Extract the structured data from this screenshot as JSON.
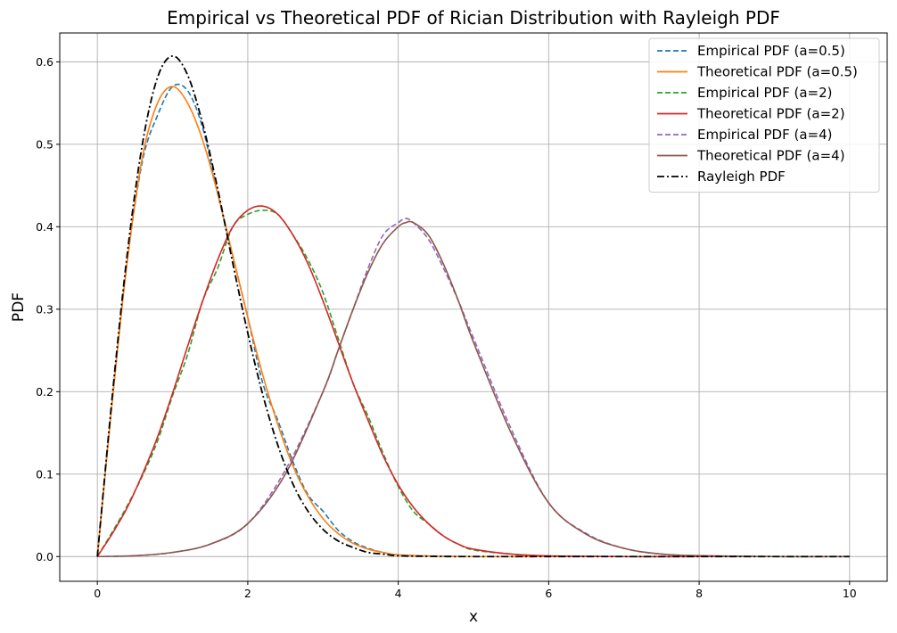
{
  "chart_data": {
    "type": "line",
    "title": "Empirical vs Theoretical PDF of Rician Distribution with Rayleigh PDF",
    "xlabel": "x",
    "ylabel": "PDF",
    "xlim": [
      -0.5,
      10.5
    ],
    "ylim": [
      -0.03,
      0.635
    ],
    "xticks": [
      0,
      2,
      4,
      6,
      8,
      10
    ],
    "yticks": [
      0.0,
      0.1,
      0.2,
      0.3,
      0.4,
      0.5,
      0.6
    ],
    "xtick_labels": [
      "0",
      "2",
      "4",
      "6",
      "8",
      "10"
    ],
    "ytick_labels": [
      "0.0",
      "0.1",
      "0.2",
      "0.3",
      "0.4",
      "0.5",
      "0.6"
    ],
    "grid": true,
    "legend_position": "top-right",
    "series": [
      {
        "name": "Empirical PDF (a=0.5)",
        "style": "dashed",
        "color": "#1f77b4",
        "x": [
          0,
          0.2,
          0.4,
          0.6,
          0.8,
          1.0,
          1.2,
          1.4,
          1.6,
          1.8,
          2.0,
          2.2,
          2.4,
          2.6,
          2.8,
          3.0,
          3.2,
          3.4,
          3.6,
          3.8,
          4.0,
          4.5,
          5.0,
          6.0,
          8.0,
          10.0
        ],
        "y": [
          0,
          0.19,
          0.36,
          0.48,
          0.535,
          0.57,
          0.565,
          0.52,
          0.44,
          0.365,
          0.29,
          0.21,
          0.165,
          0.115,
          0.075,
          0.055,
          0.032,
          0.018,
          0.01,
          0.005,
          0.002,
          0.0005,
          0,
          0,
          0,
          0
        ]
      },
      {
        "name": "Theoretical PDF (a=0.5)",
        "style": "solid",
        "color": "#ff7f0e",
        "x": [
          0,
          0.2,
          0.4,
          0.6,
          0.8,
          1.0,
          1.2,
          1.4,
          1.6,
          1.8,
          2.0,
          2.2,
          2.4,
          2.6,
          2.8,
          3.0,
          3.2,
          3.4,
          3.6,
          3.8,
          4.0,
          4.5,
          5.0,
          6.0,
          8.0,
          10.0
        ],
        "y": [
          0,
          0.19,
          0.36,
          0.485,
          0.55,
          0.57,
          0.55,
          0.505,
          0.44,
          0.365,
          0.29,
          0.22,
          0.16,
          0.11,
          0.073,
          0.046,
          0.028,
          0.016,
          0.009,
          0.005,
          0.002,
          0.0004,
          0,
          0,
          0,
          0
        ]
      },
      {
        "name": "Empirical PDF (a=2)",
        "style": "dashed",
        "color": "#2ca02c",
        "x": [
          0,
          0.2,
          0.4,
          0.6,
          0.8,
          1.0,
          1.2,
          1.4,
          1.6,
          1.8,
          2.0,
          2.2,
          2.4,
          2.6,
          2.8,
          3.0,
          3.2,
          3.4,
          3.6,
          3.8,
          4.0,
          4.2,
          4.4,
          4.6,
          4.8,
          5.0,
          5.5,
          6.0,
          7.0,
          8.0,
          10.0
        ],
        "y": [
          0,
          0.03,
          0.062,
          0.098,
          0.14,
          0.195,
          0.245,
          0.31,
          0.35,
          0.4,
          0.415,
          0.42,
          0.415,
          0.39,
          0.36,
          0.32,
          0.265,
          0.21,
          0.17,
          0.125,
          0.085,
          0.055,
          0.04,
          0.025,
          0.015,
          0.008,
          0.003,
          0.0008,
          0,
          0,
          0
        ]
      },
      {
        "name": "Theoretical PDF (a=2)",
        "style": "solid",
        "color": "#d62728",
        "x": [
          0,
          0.2,
          0.4,
          0.6,
          0.8,
          1.0,
          1.2,
          1.4,
          1.6,
          1.8,
          2.0,
          2.2,
          2.4,
          2.6,
          2.8,
          3.0,
          3.2,
          3.4,
          3.6,
          3.8,
          4.0,
          4.2,
          4.4,
          4.6,
          4.8,
          5.0,
          5.5,
          6.0,
          7.0,
          8.0,
          10.0
        ],
        "y": [
          0,
          0.028,
          0.06,
          0.1,
          0.145,
          0.198,
          0.255,
          0.31,
          0.36,
          0.4,
          0.42,
          0.425,
          0.415,
          0.39,
          0.355,
          0.31,
          0.26,
          0.21,
          0.165,
          0.122,
          0.087,
          0.06,
          0.04,
          0.025,
          0.015,
          0.009,
          0.003,
          0.0008,
          0,
          0,
          0
        ]
      },
      {
        "name": "Empirical PDF (a=4)",
        "style": "dashed",
        "color": "#9467bd",
        "x": [
          0,
          0.5,
          1.0,
          1.5,
          2.0,
          2.5,
          3.0,
          3.2,
          3.4,
          3.6,
          3.8,
          4.0,
          4.1,
          4.2,
          4.4,
          4.6,
          4.8,
          5.0,
          5.5,
          6.0,
          6.5,
          7.0,
          7.5,
          8.0,
          9.0,
          10.0
        ],
        "y": [
          0,
          0.001,
          0.005,
          0.015,
          0.04,
          0.105,
          0.2,
          0.25,
          0.3,
          0.35,
          0.39,
          0.405,
          0.41,
          0.405,
          0.385,
          0.35,
          0.31,
          0.265,
          0.155,
          0.065,
          0.028,
          0.01,
          0.003,
          0.001,
          0,
          0
        ]
      },
      {
        "name": "Theoretical PDF (a=4)",
        "style": "solid",
        "color": "#8c564b",
        "x": [
          0,
          0.5,
          1.0,
          1.5,
          2.0,
          2.5,
          3.0,
          3.2,
          3.4,
          3.6,
          3.8,
          4.0,
          4.1,
          4.2,
          4.4,
          4.6,
          4.8,
          5.0,
          5.5,
          6.0,
          6.5,
          7.0,
          7.5,
          8.0,
          9.0,
          10.0
        ],
        "y": [
          0,
          0.001,
          0.005,
          0.015,
          0.04,
          0.1,
          0.2,
          0.25,
          0.3,
          0.345,
          0.38,
          0.4,
          0.405,
          0.405,
          0.39,
          0.355,
          0.31,
          0.26,
          0.15,
          0.065,
          0.027,
          0.01,
          0.003,
          0.001,
          0,
          0
        ]
      },
      {
        "name": "Rayleigh PDF",
        "style": "dashdot",
        "color": "#000000",
        "x": [
          0,
          0.2,
          0.4,
          0.6,
          0.8,
          1.0,
          1.2,
          1.4,
          1.6,
          1.8,
          2.0,
          2.2,
          2.4,
          2.6,
          2.8,
          3.0,
          3.2,
          3.4,
          3.6,
          3.8,
          4.0,
          4.5,
          5.0,
          6.0,
          8.0,
          10.0
        ],
        "y": [
          0,
          0.196,
          0.369,
          0.501,
          0.581,
          0.607,
          0.584,
          0.525,
          0.446,
          0.356,
          0.271,
          0.196,
          0.135,
          0.088,
          0.055,
          0.033,
          0.019,
          0.011,
          0.005,
          0.003,
          0.001,
          0.0002,
          0,
          0,
          0,
          0
        ]
      }
    ]
  }
}
